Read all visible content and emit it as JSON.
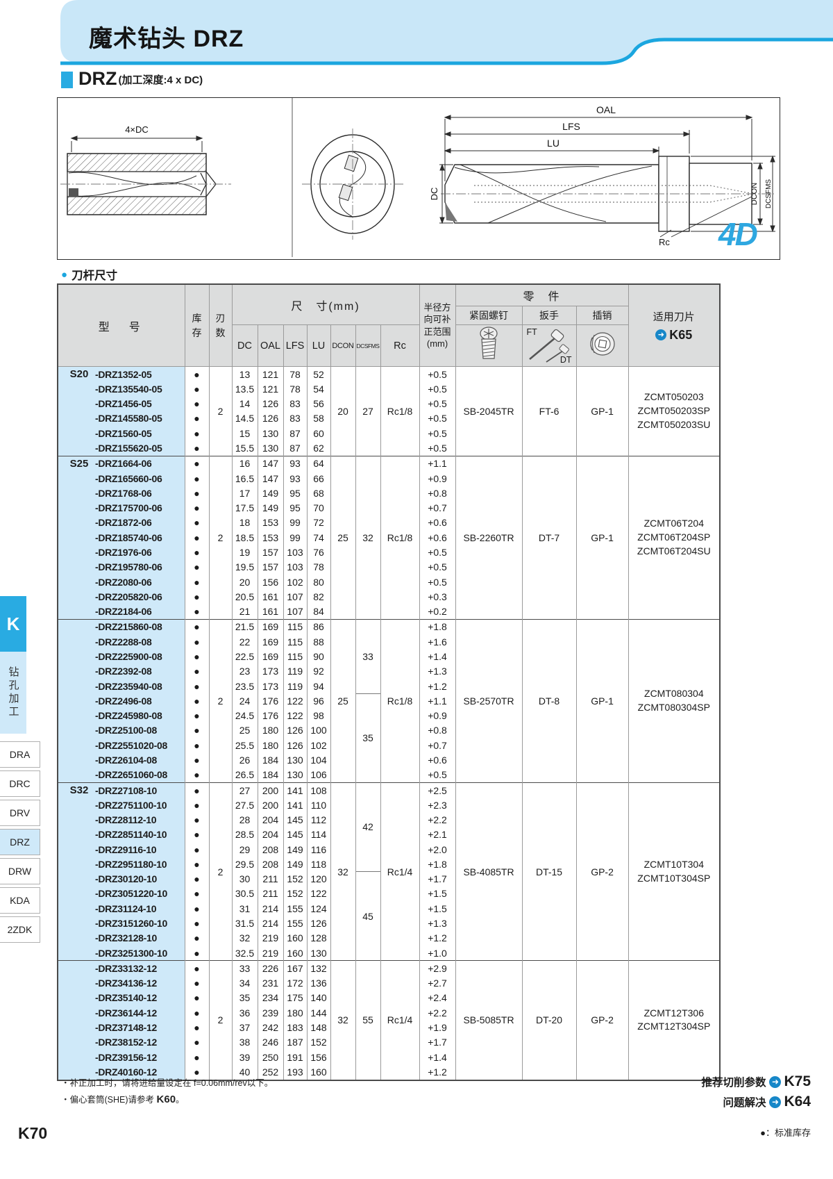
{
  "page": {
    "title": "魔术钻头 DRZ",
    "section_name": "DRZ",
    "section_suffix": "(加工深度:4 x DC)",
    "table_label": "刀杆尺寸",
    "page_number": "K70",
    "stock_legend": "●：标准库存",
    "note1": "・补正加工时，请将进给量设定在 f=0.06mm/rev以下。",
    "note2_prefix": "・偏心套筒(SHE)请参考 ",
    "note2_ref": "K60",
    "note2_suffix": "。",
    "links": [
      {
        "label": "推荐切削参数",
        "page": "K75"
      },
      {
        "label": "问题解决",
        "page": "K64"
      }
    ]
  },
  "diagram": {
    "labels": {
      "depth": "4×DC",
      "oal": "OAL",
      "lfs": "LFS",
      "lu": "LU",
      "dc": "DC",
      "dcon": "DCON",
      "dcsfms": "DCSFMS",
      "rc": "Rc",
      "badge": "4D"
    }
  },
  "sidebar": {
    "tab": "K",
    "category": "钻孔加工",
    "items": [
      {
        "label": "DRA",
        "active": false
      },
      {
        "label": "DRC",
        "active": false
      },
      {
        "label": "DRV",
        "active": false
      },
      {
        "label": "DRZ",
        "active": true
      },
      {
        "label": "DRW",
        "active": false
      },
      {
        "label": "KDA",
        "active": false
      },
      {
        "label": "2ZDK",
        "active": false
      }
    ]
  },
  "table": {
    "headers": {
      "model": "型　号",
      "stock": "库\n存",
      "flutes": "刃\n数",
      "dims_group": "尺　寸(mm)",
      "dims": [
        "DC",
        "OAL",
        "LFS",
        "LU",
        "DCON",
        "DCSFMS",
        "Rc"
      ],
      "comp": "半径方\n向可补\n正范围\n(mm)",
      "parts_group": "零　件",
      "parts": [
        "紧固螺钉",
        "扳手",
        "插销"
      ],
      "wrench_ft": "FT",
      "wrench_dt": "DT",
      "inserts": "适用刀片",
      "inserts_ref": "K65"
    },
    "groups": [
      {
        "series": "S20",
        "flutes": "2",
        "dcon": "20",
        "dcsfms": [
          {
            "v": "27",
            "n": 6
          }
        ],
        "rc": "Rc1/8",
        "screw": "SB-2045TR",
        "wrench": "FT-6",
        "pin": "GP-1",
        "inserts": [
          "ZCMT050203",
          "ZCMT050203SP",
          "ZCMT050203SU"
        ],
        "rows": [
          [
            "-DRZ1352-05",
            "13",
            "121",
            "78",
            "52",
            "+0.5"
          ],
          [
            "-DRZ135540-05",
            "13.5",
            "121",
            "78",
            "54",
            "+0.5"
          ],
          [
            "-DRZ1456-05",
            "14",
            "126",
            "83",
            "56",
            "+0.5"
          ],
          [
            "-DRZ145580-05",
            "14.5",
            "126",
            "83",
            "58",
            "+0.5"
          ],
          [
            "-DRZ1560-05",
            "15",
            "130",
            "87",
            "60",
            "+0.5"
          ],
          [
            "-DRZ155620-05",
            "15.5",
            "130",
            "87",
            "62",
            "+0.5"
          ]
        ]
      },
      {
        "series": "S25",
        "flutes": "2",
        "dcon": "25",
        "dcsfms": [
          {
            "v": "32",
            "n": 11
          }
        ],
        "rc": "Rc1/8",
        "screw": "SB-2260TR",
        "wrench": "DT-7",
        "pin": "GP-1",
        "inserts": [
          "ZCMT06T204",
          "ZCMT06T204SP",
          "ZCMT06T204SU"
        ],
        "rows": [
          [
            "-DRZ1664-06",
            "16",
            "147",
            "93",
            "64",
            "+1.1"
          ],
          [
            "-DRZ165660-06",
            "16.5",
            "147",
            "93",
            "66",
            "+0.9"
          ],
          [
            "-DRZ1768-06",
            "17",
            "149",
            "95",
            "68",
            "+0.8"
          ],
          [
            "-DRZ175700-06",
            "17.5",
            "149",
            "95",
            "70",
            "+0.7"
          ],
          [
            "-DRZ1872-06",
            "18",
            "153",
            "99",
            "72",
            "+0.6"
          ],
          [
            "-DRZ185740-06",
            "18.5",
            "153",
            "99",
            "74",
            "+0.6"
          ],
          [
            "-DRZ1976-06",
            "19",
            "157",
            "103",
            "76",
            "+0.5"
          ],
          [
            "-DRZ195780-06",
            "19.5",
            "157",
            "103",
            "78",
            "+0.5"
          ],
          [
            "-DRZ2080-06",
            "20",
            "156",
            "102",
            "80",
            "+0.5"
          ],
          [
            "-DRZ205820-06",
            "20.5",
            "161",
            "107",
            "82",
            "+0.3"
          ],
          [
            "-DRZ2184-06",
            "21",
            "161",
            "107",
            "84",
            "+0.2"
          ]
        ]
      },
      {
        "series": "",
        "flutes": "2",
        "dcon": "25",
        "dcsfms": [
          {
            "v": "33",
            "n": 5
          },
          {
            "v": "35",
            "n": 6
          }
        ],
        "rc": "Rc1/8",
        "screw": "SB-2570TR",
        "wrench": "DT-8",
        "pin": "GP-1",
        "inserts": [
          "ZCMT080304",
          "ZCMT080304SP"
        ],
        "rows": [
          [
            "-DRZ215860-08",
            "21.5",
            "169",
            "115",
            "86",
            "+1.8"
          ],
          [
            "-DRZ2288-08",
            "22",
            "169",
            "115",
            "88",
            "+1.6"
          ],
          [
            "-DRZ225900-08",
            "22.5",
            "169",
            "115",
            "90",
            "+1.4"
          ],
          [
            "-DRZ2392-08",
            "23",
            "173",
            "119",
            "92",
            "+1.3"
          ],
          [
            "-DRZ235940-08",
            "23.5",
            "173",
            "119",
            "94",
            "+1.2"
          ],
          [
            "-DRZ2496-08",
            "24",
            "176",
            "122",
            "96",
            "+1.1"
          ],
          [
            "-DRZ245980-08",
            "24.5",
            "176",
            "122",
            "98",
            "+0.9"
          ],
          [
            "-DRZ25100-08",
            "25",
            "180",
            "126",
            "100",
            "+0.8"
          ],
          [
            "-DRZ2551020-08",
            "25.5",
            "180",
            "126",
            "102",
            "+0.7"
          ],
          [
            "-DRZ26104-08",
            "26",
            "184",
            "130",
            "104",
            "+0.6"
          ],
          [
            "-DRZ2651060-08",
            "26.5",
            "184",
            "130",
            "106",
            "+0.5"
          ]
        ]
      },
      {
        "series": "S32",
        "flutes": "2",
        "dcon": "32",
        "dcsfms": [
          {
            "v": "42",
            "n": 6
          },
          {
            "v": "45",
            "n": 6
          }
        ],
        "rc": "Rc1/4",
        "screw": "SB-4085TR",
        "wrench": "DT-15",
        "pin": "GP-2",
        "inserts": [
          "ZCMT10T304",
          "ZCMT10T304SP"
        ],
        "rows": [
          [
            "-DRZ27108-10",
            "27",
            "200",
            "141",
            "108",
            "+2.5"
          ],
          [
            "-DRZ2751100-10",
            "27.5",
            "200",
            "141",
            "110",
            "+2.3"
          ],
          [
            "-DRZ28112-10",
            "28",
            "204",
            "145",
            "112",
            "+2.2"
          ],
          [
            "-DRZ2851140-10",
            "28.5",
            "204",
            "145",
            "114",
            "+2.1"
          ],
          [
            "-DRZ29116-10",
            "29",
            "208",
            "149",
            "116",
            "+2.0"
          ],
          [
            "-DRZ2951180-10",
            "29.5",
            "208",
            "149",
            "118",
            "+1.8"
          ],
          [
            "-DRZ30120-10",
            "30",
            "211",
            "152",
            "120",
            "+1.7"
          ],
          [
            "-DRZ3051220-10",
            "30.5",
            "211",
            "152",
            "122",
            "+1.5"
          ],
          [
            "-DRZ31124-10",
            "31",
            "214",
            "155",
            "124",
            "+1.5"
          ],
          [
            "-DRZ3151260-10",
            "31.5",
            "214",
            "155",
            "126",
            "+1.3"
          ],
          [
            "-DRZ32128-10",
            "32",
            "219",
            "160",
            "128",
            "+1.2"
          ],
          [
            "-DRZ3251300-10",
            "32.5",
            "219",
            "160",
            "130",
            "+1.0"
          ]
        ]
      },
      {
        "series": "",
        "flutes": "2",
        "dcon": "32",
        "dcsfms": [
          {
            "v": "55",
            "n": 8
          }
        ],
        "rc": "Rc1/4",
        "screw": "SB-5085TR",
        "wrench": "DT-20",
        "pin": "GP-2",
        "inserts": [
          "ZCMT12T306",
          "ZCMT12T304SP"
        ],
        "rows": [
          [
            "-DRZ33132-12",
            "33",
            "226",
            "167",
            "132",
            "+2.9"
          ],
          [
            "-DRZ34136-12",
            "34",
            "231",
            "172",
            "136",
            "+2.7"
          ],
          [
            "-DRZ35140-12",
            "35",
            "234",
            "175",
            "140",
            "+2.4"
          ],
          [
            "-DRZ36144-12",
            "36",
            "239",
            "180",
            "144",
            "+2.2"
          ],
          [
            "-DRZ37148-12",
            "37",
            "242",
            "183",
            "148",
            "+1.9"
          ],
          [
            "-DRZ38152-12",
            "38",
            "246",
            "187",
            "152",
            "+1.7"
          ],
          [
            "-DRZ39156-12",
            "39",
            "250",
            "191",
            "156",
            "+1.4"
          ],
          [
            "-DRZ40160-12",
            "40",
            "252",
            "193",
            "160",
            "+1.2"
          ]
        ]
      }
    ]
  }
}
